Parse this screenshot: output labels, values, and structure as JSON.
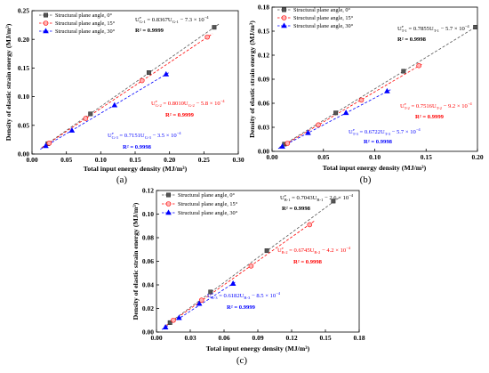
{
  "chart_data": [
    {
      "type": "scatter",
      "panel_label": "(a)",
      "xlabel": "Total input energy density (MJ/m³)",
      "ylabel": "Density of elastic strain energy (MJ/m³)",
      "xlim": [
        0,
        0.3
      ],
      "ylim": [
        0,
        0.25
      ],
      "xticks": [
        "0.00",
        "0.05",
        "0.10",
        "0.15",
        "0.20",
        "0.25",
        "0.30"
      ],
      "yticks": [
        "0.00",
        "0.05",
        "0.10",
        "0.15",
        "0.20",
        "0.25"
      ],
      "legend_position": "top-left",
      "grid": false,
      "series": [
        {
          "name": "Structural plane angle, 0°",
          "marker": "square",
          "color": "#333333",
          "fill": "#555555",
          "line_color": "#555555",
          "text_color": "#000000",
          "points": [
            [
              0.023,
              0.018
            ],
            [
              0.085,
              0.07
            ],
            [
              0.17,
              0.142
            ],
            [
              0.265,
              0.221
            ]
          ],
          "fit": {
            "slope": 0.8367,
            "intercept": -0.00073
          },
          "equation": {
            "u": "U",
            "sup": "e",
            "sub": "G-1",
            "coef": " = 0.8367U",
            "sub2": "G-1",
            "tail": " − 7.3 × 10",
            "exp": "−4"
          },
          "r2": "R² = 0.9999"
        },
        {
          "name": "Structural plane angle, 15°",
          "marker": "circle",
          "color": "#ff0000",
          "fill": "#ffb3b3",
          "line_color": "#ff0000",
          "text_color": "#ff0000",
          "points": [
            [
              0.025,
              0.019
            ],
            [
              0.078,
              0.062
            ],
            [
              0.16,
              0.128
            ],
            [
              0.255,
              0.204
            ]
          ],
          "fit": {
            "slope": 0.801,
            "intercept": -0.00058
          },
          "equation": {
            "u": "U",
            "sup": "e",
            "sub": "G-2",
            "coef": " = 0.8010U",
            "sub2": "G-2",
            "tail": " − 5.8 × 10",
            "exp": "−4"
          },
          "r2": "R² = 0.9999"
        },
        {
          "name": "Structural plane angle, 30°",
          "marker": "triangle",
          "color": "#0000ff",
          "fill": "#0000ff",
          "line_color": "#0000ff",
          "text_color": "#0000ff",
          "points": [
            [
              0.02,
              0.014
            ],
            [
              0.058,
              0.041
            ],
            [
              0.12,
              0.085
            ],
            [
              0.195,
              0.139
            ]
          ],
          "fit": {
            "slope": 0.7151,
            "intercept": -0.00035
          },
          "equation": {
            "u": "U",
            "sup": "e",
            "sub": "G-3",
            "coef": " = 0.7151U",
            "sub2": "G-3",
            "tail": " − 3.5 × 10",
            "exp": "−4"
          },
          "r2": "R² = 0.9998"
        }
      ]
    },
    {
      "type": "scatter",
      "panel_label": "(b)",
      "xlabel": "Total input energy density (MJ/m³)",
      "ylabel": "Density of elastic strain energy (MJ/m³)",
      "xlim": [
        0,
        0.2
      ],
      "ylim": [
        0,
        0.18
      ],
      "xticks": [
        "0.00",
        "0.05",
        "0.10",
        "0.15",
        "0.20"
      ],
      "yticks": [
        "0.00",
        "0.03",
        "0.06",
        "0.09",
        "0.12",
        "0.15",
        "0.18"
      ],
      "legend_position": "top-left",
      "grid": false,
      "series": [
        {
          "name": "Structural plane angle, 0°",
          "marker": "square",
          "color": "#333333",
          "fill": "#555555",
          "line_color": "#555555",
          "text_color": "#000000",
          "points": [
            [
              0.012,
              0.009
            ],
            [
              0.062,
              0.048
            ],
            [
              0.128,
              0.1
            ],
            [
              0.198,
              0.155
            ]
          ],
          "fit": {
            "slope": 0.7855,
            "intercept": -0.00057
          },
          "equation": {
            "u": "U",
            "sup": "e",
            "sub": "T-1",
            "coef": " = 0.7855U",
            "sub2": "T-1",
            "tail": " − 5.7 × 10",
            "exp": "−4"
          },
          "r2": "R² = 0.9998"
        },
        {
          "name": "Structural plane angle, 15°",
          "marker": "circle",
          "color": "#ff0000",
          "fill": "#ffb3b3",
          "line_color": "#ff0000",
          "text_color": "#ff0000",
          "points": [
            [
              0.015,
              0.01
            ],
            [
              0.045,
              0.033
            ],
            [
              0.087,
              0.064
            ],
            [
              0.143,
              0.107
            ]
          ],
          "fit": {
            "slope": 0.7516,
            "intercept": -0.00092
          },
          "equation": {
            "u": "U",
            "sup": "e",
            "sub": "T-2",
            "coef": " = 0.7516U",
            "sub2": "T-2",
            "tail": " − 9.2 × 10",
            "exp": "−4"
          },
          "r2": "R² = 0.9999"
        },
        {
          "name": "Structural plane angle, 30°",
          "marker": "triangle",
          "color": "#0000ff",
          "fill": "#0000ff",
          "line_color": "#0000ff",
          "text_color": "#0000ff",
          "points": [
            [
              0.01,
              0.006
            ],
            [
              0.035,
              0.023
            ],
            [
              0.072,
              0.048
            ],
            [
              0.112,
              0.075
            ]
          ],
          "fit": {
            "slope": 0.6722,
            "intercept": -0.00057
          },
          "equation": {
            "u": "U",
            "sup": "e",
            "sub": "T-3",
            "coef": " = 0.6722U",
            "sub2": "T-3",
            "tail": " − 5.7 × 10",
            "exp": "−4"
          },
          "r2": "R² = 0.9998"
        }
      ]
    },
    {
      "type": "scatter",
      "panel_label": "(c)",
      "xlabel": "Total input energy density (MJ/m³)",
      "ylabel": "Density of elastic strain energy (MJ/m³)",
      "xlim": [
        0,
        0.18
      ],
      "ylim": [
        0,
        0.12
      ],
      "xticks": [
        "0.00",
        "0.03",
        "0.06",
        "0.09",
        "0.12",
        "0.15",
        "0.18"
      ],
      "yticks": [
        "0.00",
        "0.02",
        "0.04",
        "0.06",
        "0.08",
        "0.10",
        "0.12"
      ],
      "legend_position": "top-left",
      "grid": false,
      "series": [
        {
          "name": "Structural plane angle, 0°",
          "marker": "square",
          "color": "#333333",
          "fill": "#555555",
          "line_color": "#555555",
          "text_color": "#000000",
          "points": [
            [
              0.012,
              0.008
            ],
            [
              0.048,
              0.034
            ],
            [
              0.098,
              0.069
            ],
            [
              0.157,
              0.111
            ]
          ],
          "fit": {
            "slope": 0.7043,
            "intercept": -0.00026
          },
          "equation": {
            "u": "U",
            "sup": "e",
            "sub": "B-1",
            "coef": " = 0.7043U",
            "sub2": "B-1",
            "tail": " − 2.6 × 10",
            "exp": "−4"
          },
          "r2": "R² = 0.9998"
        },
        {
          "name": "Structural plane angle, 15°",
          "marker": "circle",
          "color": "#ff0000",
          "fill": "#ffb3b3",
          "line_color": "#ff0000",
          "text_color": "#ff0000",
          "points": [
            [
              0.015,
              0.01
            ],
            [
              0.04,
              0.027
            ],
            [
              0.084,
              0.056
            ],
            [
              0.136,
              0.091
            ]
          ],
          "fit": {
            "slope": 0.6745,
            "intercept": -0.00042
          },
          "equation": {
            "u": "U",
            "sup": "e",
            "sub": "B-2",
            "coef": " = 0.6745U",
            "sub2": "B-2",
            "tail": " − 4.2 × 10",
            "exp": "−4"
          },
          "r2": "R² = 0.9998"
        },
        {
          "name": "Structural plane angle, 30°",
          "marker": "triangle",
          "color": "#0000ff",
          "fill": "#0000ff",
          "line_color": "#0000ff",
          "text_color": "#0000ff",
          "points": [
            [
              0.008,
              0.004
            ],
            [
              0.02,
              0.012
            ],
            [
              0.038,
              0.024
            ],
            [
              0.068,
              0.041
            ]
          ],
          "fit": {
            "slope": 0.6182,
            "intercept": -0.00085
          },
          "equation": {
            "u": "U",
            "sup": "e",
            "sub": "B-3",
            "coef": " = 0.6182U",
            "sub2": "B-3",
            "tail": " − 8.5 × 10",
            "exp": "−4"
          },
          "r2": "R² = 0.9999"
        }
      ]
    }
  ]
}
